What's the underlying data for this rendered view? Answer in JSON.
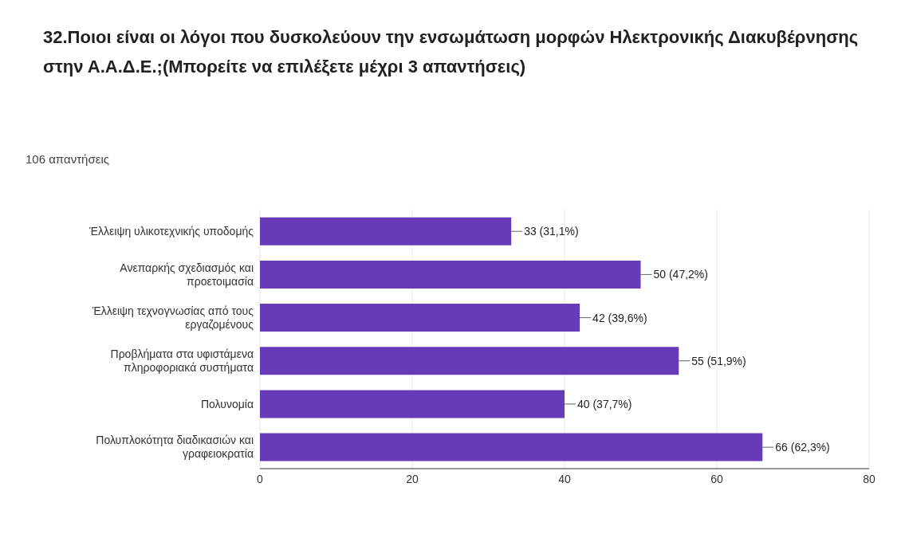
{
  "chart_data": {
    "type": "bar",
    "orientation": "horizontal",
    "title": "32.Ποιοι είναι οι λόγοι που δυσκολεύουν την ενσωμάτωση μορφών Ηλεκτρονικής Διακυβέρνησης στην Α.Α.Δ.Ε.;(Μπορείτε να επιλέξετε μέχρι 3 απαντήσεις)",
    "subtitle": "106 απαντήσεις",
    "categories": [
      "Έλλειψη υλικοτεχνικής υποδομής",
      "Ανεπαρκής σχεδιασμός και προετοιμασία",
      "Έλλειψη τεχνογνωσίας από τους εργαζομένους",
      "Προβλήματα στα υφιστάμενα πληροφοριακά συστήματα",
      "Πολυνομία",
      "Πολυπλοκότητα διαδικασιών και γραφειοκρατία"
    ],
    "values": [
      33,
      50,
      42,
      55,
      40,
      66
    ],
    "value_labels": [
      "33 (31,1%)",
      "50 (47,2%)",
      "42 (39,6%)",
      "55 (51,9%)",
      "40 (37,7%)",
      "66 (62,3%)"
    ],
    "color": "#673ab7",
    "xlim": [
      0,
      80
    ],
    "xticks": [
      0,
      20,
      40,
      60,
      80
    ],
    "grid": "x",
    "legend": false
  }
}
